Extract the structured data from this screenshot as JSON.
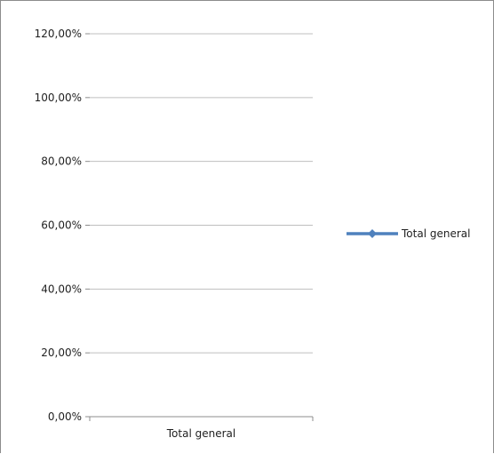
{
  "chart_data": {
    "type": "line",
    "title": "",
    "xlabel": "",
    "ylabel": "",
    "categories": [
      "Total general"
    ],
    "series": [
      {
        "name": "Total general",
        "values": [
          null
        ],
        "color": "#4f81bd"
      }
    ],
    "ylim": [
      0,
      1.2
    ],
    "y_ticks": [
      "0,00%",
      "20,00%",
      "40,00%",
      "60,00%",
      "80,00%",
      "100,00%",
      "120,00%"
    ],
    "grid": true,
    "legend": "right"
  }
}
